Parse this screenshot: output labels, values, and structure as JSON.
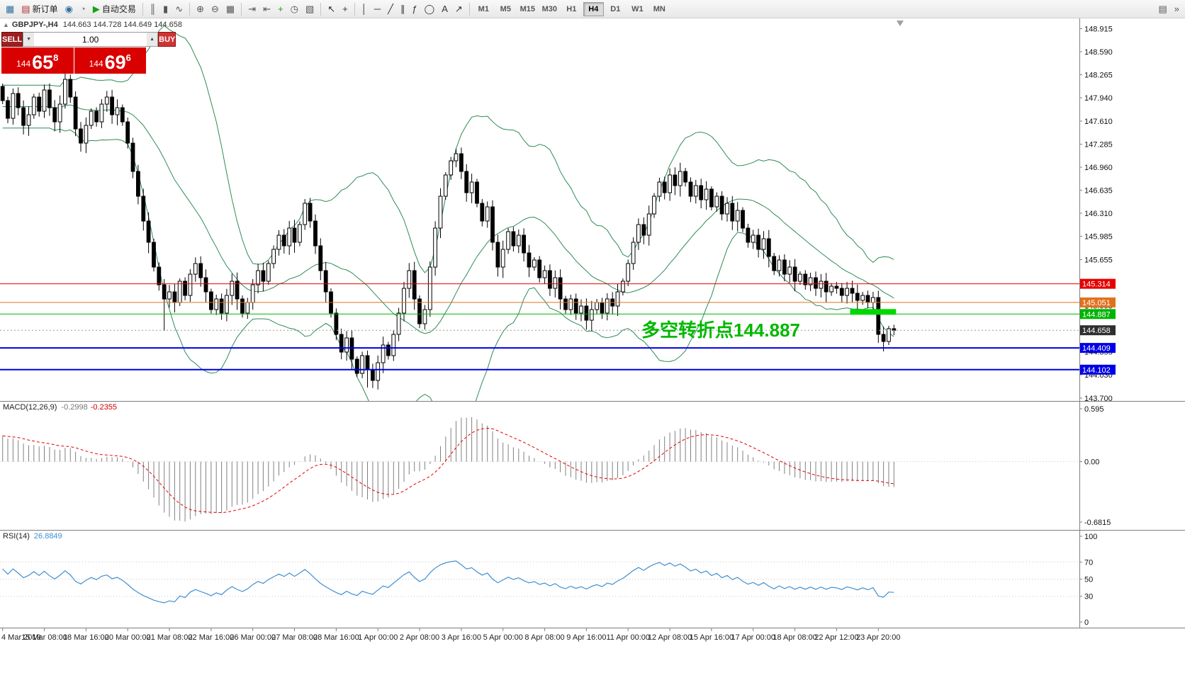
{
  "toolbar": {
    "items": [
      {
        "name": "new-chart-icon",
        "glyph": "▦",
        "color": "#2f6f9f"
      },
      {
        "name": "new-order-button",
        "glyph": "▤",
        "color": "#b03030",
        "label": "新订单"
      },
      {
        "name": "market-watch-icon",
        "glyph": "◉",
        "color": "#2f6f9f"
      },
      {
        "name": "data-window-icon",
        "glyph": "◔",
        "color": "#777777"
      },
      {
        "name": "autotrading-button",
        "glyph": "▶",
        "color": "#17a017",
        "label": "自动交易"
      },
      {
        "sep": true
      },
      {
        "name": "bar-chart-icon",
        "glyph": "║",
        "color": "#555555"
      },
      {
        "name": "candlestick-chart-icon",
        "glyph": "▮",
        "color": "#555555"
      },
      {
        "name": "line-chart-icon",
        "glyph": "∿",
        "color": "#555555"
      },
      {
        "sep": true
      },
      {
        "name": "zoom-in-icon",
        "glyph": "⊕",
        "color": "#555555"
      },
      {
        "name": "zoom-out-icon",
        "glyph": "⊖",
        "color": "#555555"
      },
      {
        "name": "tile-windows-icon",
        "glyph": "▦",
        "color": "#555555"
      },
      {
        "sep": true
      },
      {
        "name": "auto-scroll-icon",
        "glyph": "⇥",
        "color": "#555555"
      },
      {
        "name": "chart-shift-icon",
        "glyph": "⇤",
        "color": "#555555"
      },
      {
        "name": "add-indicator-icon",
        "glyph": "+",
        "color": "#17a017"
      },
      {
        "name": "periods-icon",
        "glyph": "◷",
        "color": "#555555"
      },
      {
        "name": "templates-icon",
        "glyph": "▧",
        "color": "#555555"
      },
      {
        "sep": true
      },
      {
        "name": "cursor-icon",
        "glyph": "↖",
        "color": "#333333"
      },
      {
        "name": "crosshair-icon",
        "glyph": "+",
        "color": "#333333"
      },
      {
        "sep": true
      },
      {
        "name": "vertical-line-icon",
        "glyph": "│",
        "color": "#333333"
      },
      {
        "name": "horizontal-line-icon",
        "glyph": "─",
        "color": "#333333"
      },
      {
        "name": "trendline-icon",
        "glyph": "╱",
        "color": "#333333"
      },
      {
        "name": "channel-icon",
        "glyph": "∥",
        "color": "#333333"
      },
      {
        "name": "fibonacci-icon",
        "glyph": "ƒ",
        "color": "#333333"
      },
      {
        "name": "shapes-icon",
        "glyph": "◯",
        "color": "#333333"
      },
      {
        "name": "text-icon",
        "glyph": "A",
        "color": "#333333"
      },
      {
        "name": "arrows-icon",
        "glyph": "↗",
        "color": "#333333"
      },
      {
        "sep": true
      }
    ],
    "timeframes": [
      "M1",
      "M5",
      "M15",
      "M30",
      "H1",
      "H4",
      "D1",
      "W1",
      "MN"
    ],
    "active_timeframe": "H4",
    "right_items": [
      {
        "name": "print-icon",
        "glyph": "▤",
        "color": "#555555"
      },
      {
        "name": "toolbar-overflow-icon",
        "glyph": "»",
        "color": "#555555"
      }
    ]
  },
  "chart": {
    "header": {
      "collapse_icon": "▲",
      "symbol_period": "GBPJPY-,H4",
      "ohlc": "144.663 144.728 144.649 144.658"
    },
    "trade_panel": {
      "sell_label": "SELL",
      "buy_label": "BUY",
      "volume": "1.00",
      "volume_down_icon": "▼",
      "volume_up_icon": "▲",
      "sell_price": {
        "prefix": "144",
        "big": "65",
        "sup": "8"
      },
      "buy_price": {
        "prefix": "144",
        "big": "69",
        "sup": "6"
      }
    },
    "annotation": {
      "text": "多空转折点144.887",
      "color": "#00b800"
    }
  },
  "colors": {
    "sell_button": "#9e1f1f",
    "buy_button": "#cf3434",
    "price_panel": "#d90000",
    "annotation_green": "#00b800",
    "bid_price": "144.658",
    "ask_price": "144.696"
  },
  "chart_data": [
    {
      "type": "candlestick",
      "symbol": "GBPJPY",
      "period": "H4",
      "open_first": 148.1,
      "closes": [
        147.9,
        147.65,
        148.0,
        147.8,
        147.55,
        147.7,
        147.95,
        147.75,
        148.05,
        147.8,
        147.6,
        147.85,
        148.2,
        147.95,
        147.5,
        147.3,
        147.55,
        147.75,
        147.6,
        147.85,
        147.95,
        147.7,
        147.8,
        147.6,
        147.3,
        146.9,
        146.55,
        146.2,
        145.9,
        145.55,
        145.3,
        145.1,
        145.2,
        145.05,
        145.35,
        145.15,
        145.45,
        145.6,
        145.4,
        145.2,
        144.95,
        145.1,
        144.9,
        145.15,
        145.35,
        145.1,
        144.9,
        145.05,
        145.3,
        145.5,
        145.35,
        145.6,
        145.8,
        146.0,
        145.85,
        146.1,
        145.9,
        146.15,
        146.45,
        146.2,
        145.85,
        145.5,
        145.2,
        144.9,
        144.6,
        144.35,
        144.55,
        144.25,
        144.05,
        144.3,
        144.1,
        143.95,
        144.2,
        144.45,
        144.3,
        144.6,
        144.9,
        145.25,
        145.5,
        145.1,
        144.75,
        144.95,
        145.55,
        146.1,
        146.55,
        146.85,
        147.05,
        147.15,
        146.9,
        146.6,
        146.75,
        146.45,
        146.2,
        146.4,
        145.9,
        145.55,
        145.8,
        146.05,
        145.85,
        146.0,
        145.75,
        145.55,
        145.65,
        145.4,
        145.5,
        145.25,
        145.4,
        145.1,
        144.95,
        145.1,
        144.9,
        145.0,
        144.8,
        144.95,
        145.05,
        144.9,
        145.1,
        145.0,
        145.2,
        145.35,
        145.6,
        145.9,
        146.15,
        146.0,
        146.3,
        146.55,
        146.75,
        146.6,
        146.85,
        146.7,
        146.9,
        146.75,
        146.55,
        146.7,
        146.5,
        146.65,
        146.4,
        146.55,
        146.3,
        146.45,
        146.2,
        146.35,
        146.1,
        145.9,
        146.0,
        145.8,
        145.95,
        145.7,
        145.5,
        145.65,
        145.45,
        145.55,
        145.35,
        145.45,
        145.3,
        145.4,
        145.25,
        145.35,
        145.2,
        145.28,
        145.25,
        145.15,
        145.25,
        145.18,
        145.08,
        145.15,
        145.05,
        145.12,
        144.6,
        144.5,
        144.68,
        144.658
      ],
      "wick_overrides": {
        "12": {
          "high": 148.33
        },
        "31": {
          "low": 144.65
        },
        "70": {
          "low": 143.85
        }
      },
      "ylim": [
        143.66,
        149.06
      ],
      "y_ticks": [
        148.915,
        148.59,
        148.265,
        147.94,
        147.61,
        147.285,
        146.96,
        146.635,
        146.31,
        145.985,
        145.655,
        145.33,
        145.005,
        144.68,
        144.355,
        144.03,
        143.7
      ],
      "levels": [
        {
          "price": 145.314,
          "label": "145.314",
          "color": "#e60000",
          "width": 1
        },
        {
          "price": 145.051,
          "label": "145.051",
          "color": "#e2711d",
          "width": 1
        },
        {
          "price": 144.887,
          "label": "144.887",
          "color": "#00b400",
          "width": 1
        },
        {
          "price": 144.658,
          "label": "144.658",
          "color": "#2f2f2f",
          "width": 1,
          "style": "current"
        },
        {
          "price": 144.409,
          "label": "144.409",
          "color": "#0000e6",
          "width": 2
        },
        {
          "price": 144.102,
          "label": "144.102",
          "color": "#0000e6",
          "width": 2
        }
      ],
      "bollinger": {
        "period": 20,
        "deviation": 2,
        "color": "#2e8b57"
      },
      "highlight_bar": {
        "from_index": 163,
        "to_index": 171,
        "price": 144.887,
        "color": "#00d800"
      }
    },
    {
      "type": "macd",
      "title": "MACD(12,26,9)",
      "value_main": "-0.2998",
      "value_signal": "-0.2355",
      "params": {
        "fast": 12,
        "slow": 26,
        "signal": 9
      },
      "y_ticks": [
        "0.595",
        "0.00",
        "-0.6815"
      ],
      "ylim": [
        -0.6815,
        0.595
      ],
      "histogram_color": "#808080",
      "signal_color": "#e60000",
      "seed_fast_offset": 0.15,
      "seed_slow_offset": 0.45
    },
    {
      "type": "rsi",
      "title": "RSI(14)",
      "value": "26.8849",
      "period": 14,
      "ylim": [
        0,
        100
      ],
      "y_ticks": [
        100,
        70,
        50,
        30,
        0
      ],
      "level_lines": [
        70,
        50,
        30
      ],
      "line_color": "#3f8fd2"
    }
  ],
  "time_axis": {
    "label_every_n_candles": 8,
    "labels": [
      "4 Mar 2019",
      "15 Mar 08:00",
      "18 Mar 16:00",
      "20 Mar 00:00",
      "21 Mar 08:00",
      "22 Mar 16:00",
      "26 Mar 00:00",
      "27 Mar 08:00",
      "28 Mar 16:00",
      "1 Apr 00:00",
      "2 Apr 08:00",
      "3 Apr 16:00",
      "5 Apr 00:00",
      "8 Apr 08:00",
      "9 Apr 16:00",
      "11 Apr 00:00",
      "12 Apr 08:00",
      "15 Apr 16:00",
      "17 Apr 00:00",
      "18 Apr 08:00",
      "22 Apr 12:00",
      "23 Apr 20:00"
    ]
  }
}
